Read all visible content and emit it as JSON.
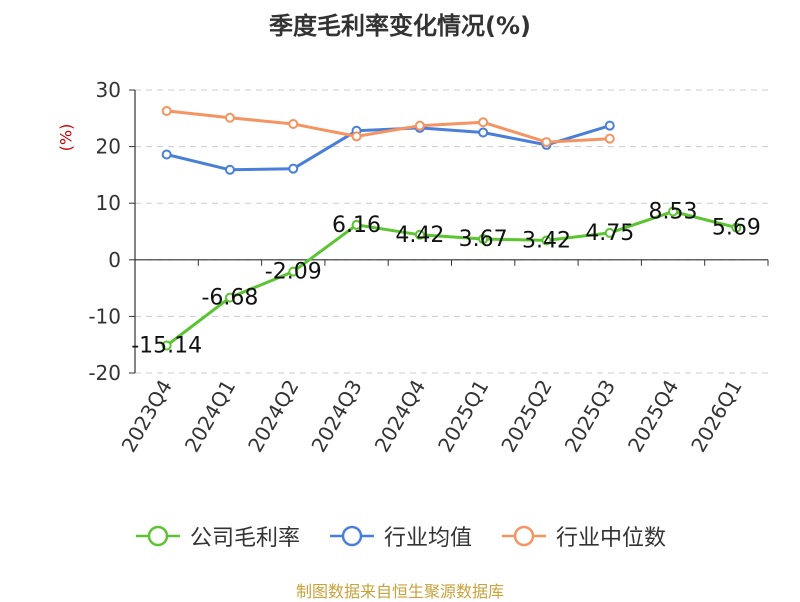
{
  "chart_data": {
    "type": "line",
    "title": "季度毛利率变化情况(%)",
    "ylabel": "(%)",
    "categories": [
      "2023Q4",
      "2024Q1",
      "2024Q2",
      "2024Q3",
      "2024Q4",
      "2025Q1",
      "2025Q2",
      "2025Q3",
      "2025Q4",
      "2026Q1"
    ],
    "ylim": [
      -20,
      30
    ],
    "yticks": [
      -20,
      -10,
      0,
      10,
      20,
      30
    ],
    "grid": true,
    "legend_position": "bottom",
    "series": [
      {
        "name": "公司毛利率",
        "color": "#5ac531",
        "values": [
          -15.14,
          -6.68,
          -2.09,
          6.16,
          4.42,
          3.67,
          3.42,
          4.75,
          8.53,
          5.69
        ],
        "labels": true
      },
      {
        "name": "行业均值",
        "color": "#4a7fd9",
        "values": [
          18.6,
          15.9,
          16.1,
          22.8,
          23.3,
          22.5,
          20.3,
          23.7,
          null,
          null
        ],
        "labels": false
      },
      {
        "name": "行业中位数",
        "color": "#f59460",
        "values": [
          26.3,
          25.1,
          24.0,
          21.8,
          23.7,
          24.3,
          20.8,
          21.4,
          null,
          null
        ],
        "labels": false
      }
    ]
  },
  "source": "制图数据来自恒生聚源数据库"
}
